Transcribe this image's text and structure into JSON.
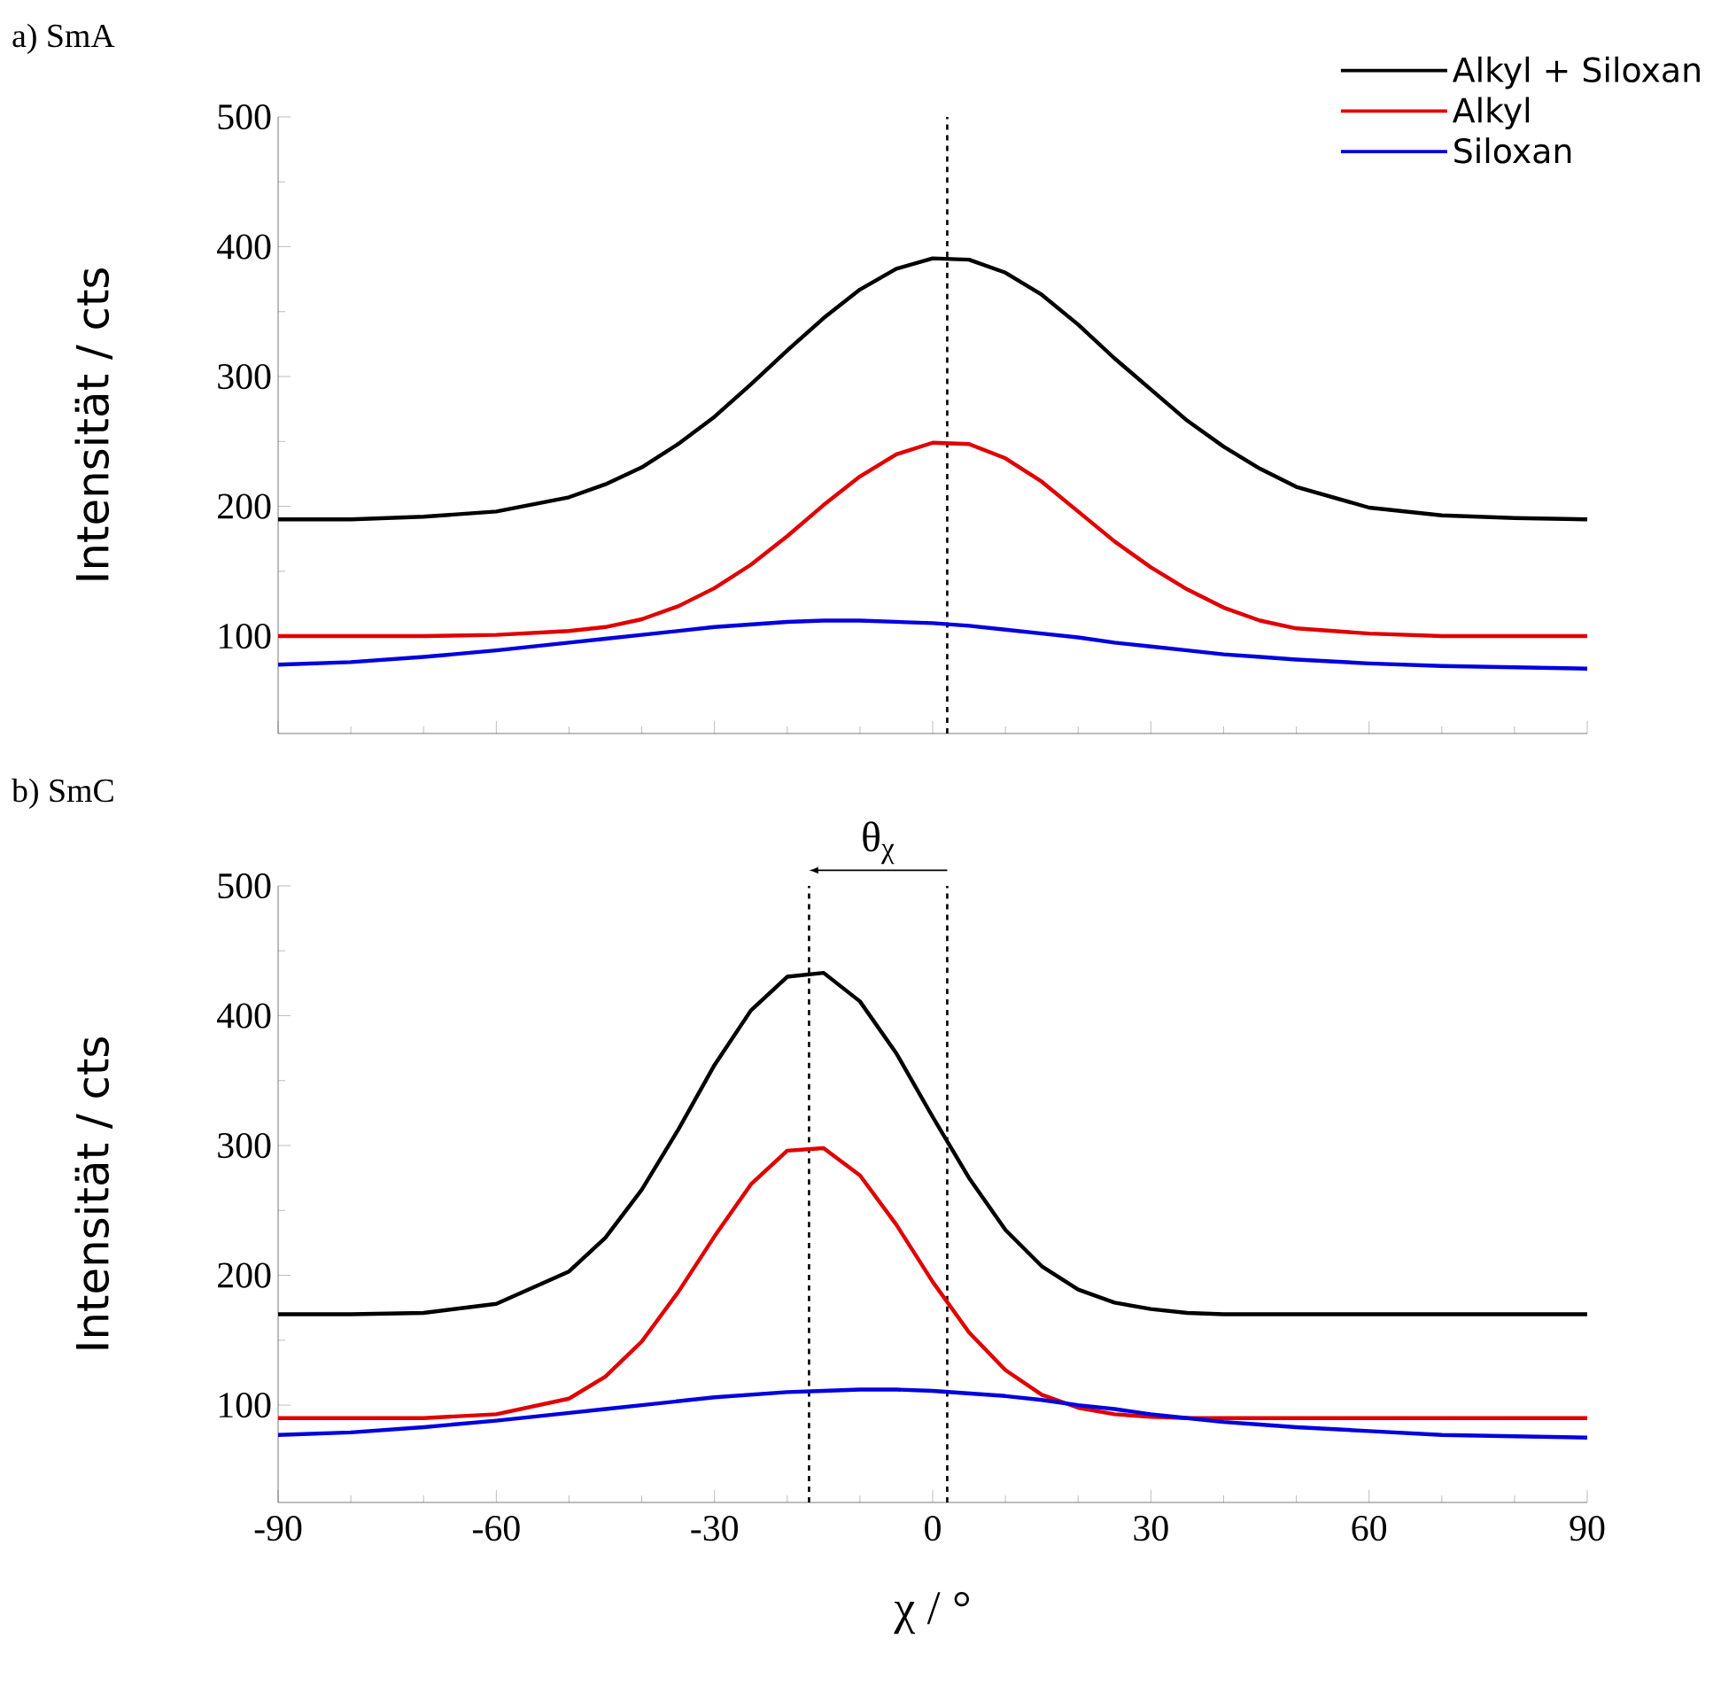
{
  "chart_data": [
    {
      "type": "line",
      "title": "a) SmA",
      "ylabel": "Intensität / cts",
      "x": [
        -90,
        -80,
        -70,
        -60,
        -50,
        -45,
        -40,
        -35,
        -30,
        -25,
        -20,
        -15,
        -10,
        -5,
        0,
        5,
        10,
        15,
        20,
        25,
        30,
        35,
        40,
        45,
        50,
        60,
        70,
        80,
        90
      ],
      "series": [
        {
          "name": "Alkyl + Siloxan",
          "color": "#000000",
          "values": [
            190,
            190,
            192,
            196,
            207,
            217,
            230,
            248,
            269,
            294,
            320,
            345,
            367,
            383,
            391,
            390,
            380,
            363,
            340,
            314,
            290,
            266,
            246,
            229,
            215,
            199,
            193,
            191,
            190
          ]
        },
        {
          "name": "Alkyl",
          "color": "#e00000",
          "values": [
            100,
            100,
            100,
            101,
            104,
            107,
            113,
            123,
            137,
            155,
            177,
            201,
            223,
            240,
            249,
            248,
            237,
            219,
            196,
            173,
            153,
            136,
            122,
            112,
            106,
            102,
            100,
            100,
            100
          ]
        },
        {
          "name": "Siloxan",
          "color": "#0000e0",
          "values": [
            78,
            80,
            84,
            89,
            95,
            98,
            101,
            104,
            107,
            109,
            111,
            112,
            112,
            111,
            110,
            108,
            105,
            102,
            99,
            95,
            92,
            89,
            86,
            84,
            82,
            79,
            77,
            76,
            75
          ]
        }
      ],
      "xlim": [
        -90,
        90
      ],
      "ylim": [
        25,
        500
      ],
      "xticks": [
        -90,
        -60,
        -30,
        0,
        30,
        60,
        90
      ],
      "yticks": [
        100,
        200,
        300,
        400,
        500
      ],
      "tick_labels": "y",
      "legend": "top right",
      "ref_lines": [
        {
          "axis": "x",
          "value": 2,
          "line_style": "dashed",
          "color": "#000000"
        }
      ]
    },
    {
      "type": "line",
      "title": "b) SmC",
      "xlabel": "χ / °",
      "ylabel": "Intensität / cts",
      "x": [
        -90,
        -80,
        -70,
        -60,
        -50,
        -45,
        -40,
        -35,
        -30,
        -25,
        -20,
        -15,
        -10,
        -5,
        0,
        5,
        10,
        15,
        20,
        25,
        30,
        35,
        40,
        45,
        50,
        60,
        70,
        80,
        90
      ],
      "series": [
        {
          "color": "#000000",
          "values": [
            170,
            170,
            171,
            178,
            203,
            229,
            266,
            312,
            362,
            404,
            430,
            433,
            411,
            371,
            322,
            275,
            235,
            207,
            189,
            179,
            174,
            171,
            170,
            170,
            170,
            170,
            170,
            170,
            170
          ]
        },
        {
          "color": "#e00000",
          "values": [
            90,
            90,
            90,
            93,
            105,
            122,
            149,
            187,
            230,
            270,
            296,
            298,
            277,
            239,
            195,
            156,
            127,
            108,
            98,
            93,
            91,
            90,
            90,
            90,
            90,
            90,
            90,
            90,
            90
          ]
        },
        {
          "color": "#0000e0",
          "values": [
            77,
            79,
            83,
            88,
            94,
            97,
            100,
            103,
            106,
            108,
            110,
            111,
            112,
            112,
            111,
            109,
            107,
            104,
            100,
            97,
            93,
            90,
            87,
            85,
            83,
            80,
            77,
            76,
            75
          ]
        }
      ],
      "xlim": [
        -90,
        90
      ],
      "ylim": [
        25,
        500
      ],
      "xticks": [
        -90,
        -60,
        -30,
        0,
        30,
        60,
        90
      ],
      "yticks": [
        100,
        200,
        300,
        400,
        500
      ],
      "ref_lines": [
        {
          "axis": "x",
          "value": -17,
          "line_style": "dashed",
          "color": "#000000"
        },
        {
          "axis": "x",
          "value": 2,
          "line_style": "dashed",
          "color": "#000000"
        }
      ],
      "annotations": [
        "θ$_{χ}$"
      ]
    }
  ]
}
